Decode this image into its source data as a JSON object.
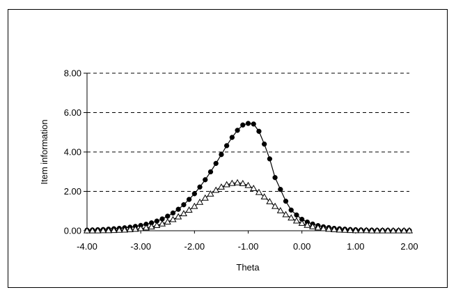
{
  "chart_data": {
    "type": "line",
    "title": "",
    "xlabel": "Theta",
    "ylabel": "Item information",
    "xlim": [
      -4,
      2
    ],
    "ylim": [
      0,
      8
    ],
    "x_ticks": [
      "-4.00",
      "-3.00",
      "-2.00",
      "-1.00",
      "0.00",
      "1.00",
      "2.00"
    ],
    "y_ticks": [
      "0.00",
      "2.00",
      "4.00",
      "6.00",
      "8.00"
    ],
    "grid": "horizontal dashed",
    "legend": "none",
    "series": [
      {
        "marker": "filled-circle",
        "color": "#000000",
        "x": [
          -4.0,
          -3.9,
          -3.8,
          -3.7,
          -3.6,
          -3.5,
          -3.4,
          -3.3,
          -3.2,
          -3.1,
          -3.0,
          -2.9,
          -2.8,
          -2.7,
          -2.6,
          -2.5,
          -2.4,
          -2.3,
          -2.2,
          -2.1,
          -2.0,
          -1.9,
          -1.8,
          -1.7,
          -1.6,
          -1.5,
          -1.4,
          -1.3,
          -1.2,
          -1.1,
          -1.0,
          -0.9,
          -0.8,
          -0.7,
          -0.6,
          -0.5,
          -0.4,
          -0.3,
          -0.2,
          -0.1,
          0.0,
          0.1,
          0.2,
          0.3,
          0.4,
          0.5,
          0.6,
          0.7,
          0.8,
          0.9,
          1.0,
          1.1,
          1.2,
          1.3,
          1.4,
          1.5,
          1.6,
          1.7,
          1.8,
          1.9,
          2.0
        ],
        "values": [
          0.03,
          0.04,
          0.05,
          0.06,
          0.08,
          0.1,
          0.12,
          0.15,
          0.18,
          0.22,
          0.27,
          0.33,
          0.4,
          0.49,
          0.6,
          0.74,
          0.9,
          1.09,
          1.32,
          1.59,
          1.88,
          2.22,
          2.59,
          2.99,
          3.42,
          3.87,
          4.32,
          4.74,
          5.1,
          5.37,
          5.45,
          5.42,
          5.05,
          4.4,
          3.65,
          2.7,
          2.1,
          1.5,
          1.05,
          0.8,
          0.58,
          0.44,
          0.34,
          0.26,
          0.2,
          0.16,
          0.12,
          0.1,
          0.08,
          0.06,
          0.05,
          0.04,
          0.03,
          0.03,
          0.02,
          0.02,
          0.02,
          0.01,
          0.01,
          0.01,
          0.01
        ]
      },
      {
        "marker": "open-triangle",
        "color": "#000000",
        "x": [
          -4.0,
          -3.9,
          -3.8,
          -3.7,
          -3.6,
          -3.5,
          -3.4,
          -3.3,
          -3.2,
          -3.1,
          -3.0,
          -2.9,
          -2.8,
          -2.7,
          -2.6,
          -2.5,
          -2.4,
          -2.3,
          -2.2,
          -2.1,
          -2.0,
          -1.9,
          -1.8,
          -1.7,
          -1.6,
          -1.5,
          -1.4,
          -1.3,
          -1.2,
          -1.1,
          -1.0,
          -0.9,
          -0.8,
          -0.7,
          -0.6,
          -0.5,
          -0.4,
          -0.3,
          -0.2,
          -0.1,
          0.0,
          0.1,
          0.2,
          0.3,
          0.4,
          0.5,
          0.6,
          0.7,
          0.8,
          0.9,
          1.0,
          1.1,
          1.2,
          1.3,
          1.4,
          1.5,
          1.6,
          1.7,
          1.8,
          1.9,
          2.0
        ],
        "values": [
          0.0,
          0.0,
          0.0,
          0.01,
          0.01,
          0.02,
          0.03,
          0.04,
          0.06,
          0.08,
          0.11,
          0.15,
          0.2,
          0.27,
          0.35,
          0.45,
          0.57,
          0.71,
          0.87,
          1.05,
          1.24,
          1.45,
          1.66,
          1.87,
          2.06,
          2.22,
          2.34,
          2.41,
          2.44,
          2.4,
          2.3,
          2.15,
          1.95,
          1.72,
          1.48,
          1.24,
          1.02,
          0.82,
          0.65,
          0.5,
          0.38,
          0.28,
          0.21,
          0.15,
          0.11,
          0.08,
          0.06,
          0.04,
          0.03,
          0.02,
          0.01,
          0.01,
          0.01,
          0.0,
          0.0,
          0.0,
          0.0,
          0.0,
          0.0,
          0.0,
          0.0
        ]
      }
    ]
  }
}
